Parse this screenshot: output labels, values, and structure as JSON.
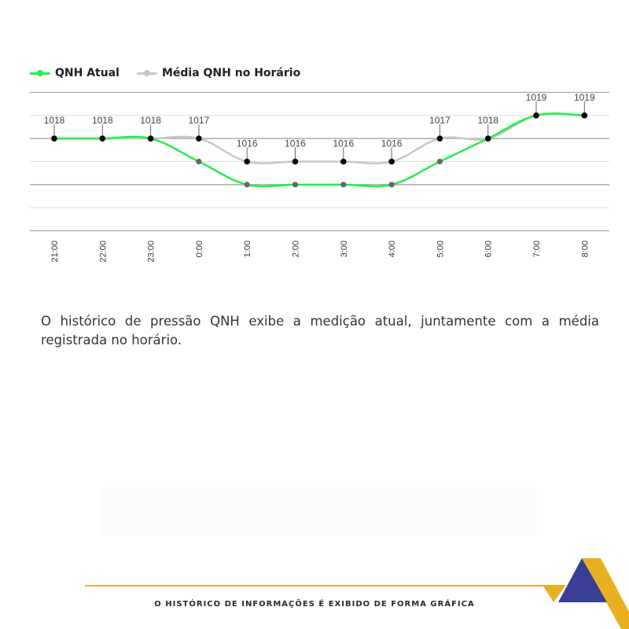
{
  "legend": {
    "current_label": "QNH Atual",
    "average_label": "Média QNH no Horário"
  },
  "chart_data": {
    "type": "line",
    "categories": [
      "21:00",
      "22:00",
      "23:00",
      "0:00",
      "1:00",
      "2:00",
      "3:00",
      "4:00",
      "5:00",
      "6:00",
      "7:00",
      "8:00"
    ],
    "series": [
      {
        "name": "QNH Atual",
        "values": [
          1018,
          1018,
          1018,
          1017,
          1016,
          1016,
          1016,
          1016,
          1017,
          1018,
          1019,
          1019
        ],
        "color": "#22ee44"
      },
      {
        "name": "Média QNH no Horário",
        "values": [
          1018,
          1018,
          1018,
          1018,
          1017,
          1017,
          1017,
          1017,
          1018,
          1018,
          1019,
          1019
        ],
        "color": "#c8c8c8"
      }
    ],
    "data_labels": [
      "1018",
      "1018",
      "1018",
      "1017",
      "1016",
      "1016",
      "1016",
      "1016",
      "1017",
      "1018",
      "1019",
      "1019"
    ],
    "ylim": [
      1014,
      1020
    ],
    "grid": true,
    "legend_position": "top-left"
  },
  "description": "O histórico de pressão QNH exibe a medição atual, juntamente com a média registrada no horário.",
  "footer": {
    "text": "O HISTÓRICO DE INFORMAÇÕES É EXIBIDO DE FORMA GRÁFICA"
  },
  "colors": {
    "accent_yellow": "#e8b020",
    "accent_blue": "#3a3f96",
    "current_line": "#22ee44",
    "average_line": "#c8c8c8"
  }
}
